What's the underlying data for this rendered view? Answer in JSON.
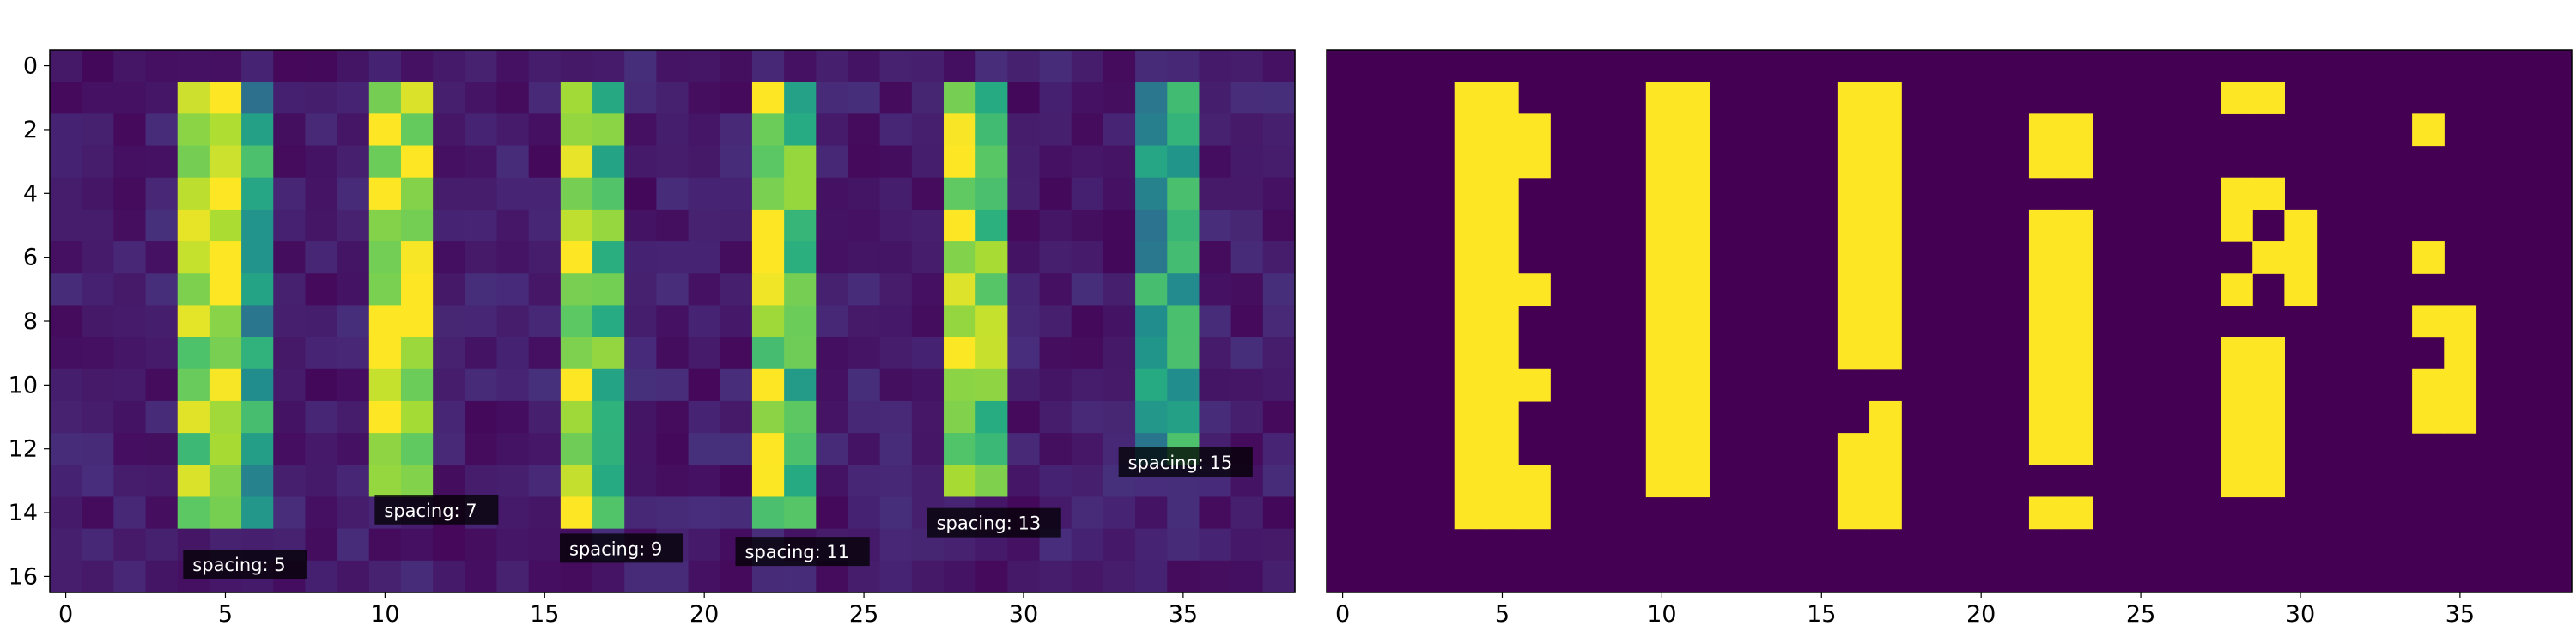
{
  "chart_data": [
    {
      "type": "heatmap",
      "title": "",
      "xlabel": "",
      "ylabel": "",
      "xlim": [
        -0.5,
        38.5
      ],
      "ylim": [
        16.5,
        -0.5
      ],
      "rows": 17,
      "cols": 39,
      "colormap": "viridis",
      "x_ticks": [
        0,
        5,
        10,
        15,
        20,
        25,
        30,
        35
      ],
      "y_ticks": [
        0,
        2,
        4,
        6,
        8,
        10,
        12,
        14,
        16
      ],
      "values_description_rows": [
        "0.06 background noise (0.02-0.15) everywhere except bars",
        "bar A cols 4-6 rows 1-14",
        "bar B cols 10-11 rows 1-13",
        "bar C cols 16-17 rows 1-14",
        "bar D cols 22-23 rows 1-14",
        "bar E cols 28-29 rows 1-13",
        "bar F cols 34-35 rows 1-12"
      ],
      "bars": [
        {
          "cols": [
            4,
            5,
            6
          ],
          "rows": [
            1,
            14
          ],
          "intensity": [
            0.85,
            0.95,
            0.55
          ]
        },
        {
          "cols": [
            10,
            11
          ],
          "rows": [
            1,
            13
          ],
          "intensity": [
            0.95,
            0.9
          ]
        },
        {
          "cols": [
            16,
            17
          ],
          "rows": [
            1,
            14
          ],
          "intensity": [
            0.9,
            0.75
          ]
        },
        {
          "cols": [
            22,
            23
          ],
          "rows": [
            1,
            14
          ],
          "intensity": [
            0.85,
            0.7
          ]
        },
        {
          "cols": [
            28,
            29
          ],
          "rows": [
            1,
            13
          ],
          "intensity": [
            0.9,
            0.75
          ]
        },
        {
          "cols": [
            34,
            35
          ],
          "rows": [
            1,
            12
          ],
          "intensity": [
            0.55,
            0.55
          ]
        }
      ],
      "annotations": [
        {
          "text": "spacing: 5",
          "x": 4,
          "y": 15.8
        },
        {
          "text": "spacing: 7",
          "x": 10,
          "y": 14.1
        },
        {
          "text": "spacing: 9",
          "x": 15.8,
          "y": 15.3
        },
        {
          "text": "spacing: 11",
          "x": 21.3,
          "y": 15.4
        },
        {
          "text": "spacing: 13",
          "x": 27.3,
          "y": 14.5
        },
        {
          "text": "spacing: 15",
          "x": 33.3,
          "y": 12.6
        }
      ]
    },
    {
      "type": "heatmap",
      "title": "",
      "xlabel": "",
      "ylabel": "",
      "xlim": [
        -0.5,
        38.5
      ],
      "ylim": [
        16.5,
        -0.5
      ],
      "rows": 17,
      "cols": 39,
      "colormap": "binary-viridis",
      "x_ticks": [
        0,
        5,
        10,
        15,
        20,
        25,
        30,
        35
      ],
      "y_ticks": [],
      "cells_on": [
        {
          "col": 4,
          "rows": [
            [
              1,
              14
            ]
          ]
        },
        {
          "col": 5,
          "rows": [
            [
              1,
              14
            ]
          ]
        },
        {
          "col": 6,
          "rows": [
            [
              2,
              3
            ],
            [
              7,
              7
            ],
            [
              10,
              10
            ],
            [
              13,
              14
            ]
          ]
        },
        {
          "col": 10,
          "rows": [
            [
              1,
              13
            ]
          ]
        },
        {
          "col": 11,
          "rows": [
            [
              1,
              13
            ]
          ]
        },
        {
          "col": 16,
          "rows": [
            [
              1,
              9
            ],
            [
              12,
              14
            ]
          ]
        },
        {
          "col": 17,
          "rows": [
            [
              1,
              9
            ],
            [
              11,
              14
            ]
          ]
        },
        {
          "col": 22,
          "rows": [
            [
              2,
              3
            ],
            [
              5,
              12
            ],
            [
              14,
              14
            ]
          ]
        },
        {
          "col": 23,
          "rows": [
            [
              2,
              3
            ],
            [
              5,
              12
            ],
            [
              14,
              14
            ]
          ]
        },
        {
          "col": 28,
          "rows": [
            [
              1,
              1
            ],
            [
              4,
              5
            ],
            [
              7,
              7
            ],
            [
              9,
              13
            ]
          ]
        },
        {
          "col": 29,
          "rows": [
            [
              1,
              1
            ],
            [
              4,
              4
            ],
            [
              6,
              6
            ],
            [
              9,
              13
            ]
          ]
        },
        {
          "col": 30,
          "rows": [
            [
              5,
              7
            ]
          ]
        },
        {
          "col": 34,
          "rows": [
            [
              2,
              2
            ],
            [
              6,
              6
            ],
            [
              8,
              8
            ],
            [
              10,
              11
            ]
          ]
        },
        {
          "col": 35,
          "rows": [
            [
              8,
              9
            ],
            [
              10,
              11
            ]
          ]
        }
      ]
    }
  ],
  "annotations_labels": [
    "spacing: 5",
    "spacing: 7",
    "spacing: 9",
    "spacing: 11",
    "spacing: 13",
    "spacing: 15"
  ],
  "colors": {
    "low": "#440154",
    "high": "#fde725",
    "label_bg": "#000000",
    "label_text": "#ffffff"
  }
}
